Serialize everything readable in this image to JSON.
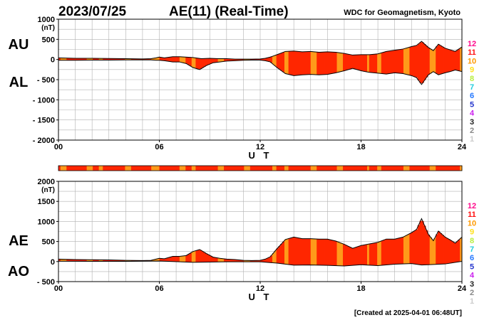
{
  "header": {
    "date": "2023/07/25",
    "title": "AE(11) (Real-Time)",
    "source": "WDC for Geomagnetism, Kyoto"
  },
  "footer": {
    "created": "[Created at 2025-04-01 06:48UT]"
  },
  "colors": {
    "fill_main": "#ff2600",
    "fill_alt": "#ff9a1a",
    "outline": "#000000",
    "grid": "#b0b0b0"
  },
  "legend": {
    "items": [
      {
        "label": "12",
        "color": "#ff0a8c"
      },
      {
        "label": "11",
        "color": "#ff1010"
      },
      {
        "label": "10",
        "color": "#ff9900"
      },
      {
        "label": "9",
        "color": "#ffe01a"
      },
      {
        "label": "8",
        "color": "#b8ee40"
      },
      {
        "label": "7",
        "color": "#22ccdd"
      },
      {
        "label": "6",
        "color": "#2277ff"
      },
      {
        "label": "5",
        "color": "#2233cc"
      },
      {
        "label": "4",
        "color": "#cc22ee"
      },
      {
        "label": "3",
        "color": "#222222"
      },
      {
        "label": "2",
        "color": "#888888"
      },
      {
        "label": "1",
        "color": "#cccccc"
      }
    ]
  },
  "chart_data": [
    {
      "type": "area",
      "panel": "AU/AL",
      "labels": [
        "AU",
        "AL"
      ],
      "ylabel": "(nT)",
      "xlabel": "U T",
      "xlim": [
        0,
        24
      ],
      "ylim": [
        -2000,
        1000
      ],
      "xticks": [
        "00",
        "06",
        "12",
        "18",
        "24"
      ],
      "yticks": [
        {
          "value": 1000,
          "label": "1000"
        },
        {
          "value": 500,
          "label": "500"
        },
        {
          "value": 0,
          "label": "0"
        },
        {
          "value": -500,
          "label": "- 500"
        },
        {
          "value": -1000,
          "label": "- 1000"
        },
        {
          "value": -1500,
          "label": "- 1500"
        },
        {
          "value": -2000,
          "label": "- 2000"
        }
      ],
      "grid": true,
      "series": [
        {
          "name": "AU",
          "x": [
            0,
            1,
            2,
            3,
            4,
            5,
            5.5,
            5.8,
            6,
            6.3,
            6.8,
            7.2,
            8,
            8.5,
            9,
            9.5,
            10,
            10.5,
            11,
            11.5,
            12,
            12.3,
            12.6,
            13,
            13.5,
            14,
            14.5,
            15,
            15.5,
            16,
            16.5,
            17,
            17.5,
            18,
            18.5,
            19,
            19.5,
            20,
            20.5,
            21,
            21.3,
            21.6,
            22,
            22.3,
            22.6,
            23,
            23.3,
            23.6,
            24
          ],
          "values": [
            40,
            30,
            30,
            25,
            20,
            15,
            20,
            40,
            60,
            40,
            70,
            70,
            50,
            20,
            30,
            20,
            20,
            10,
            10,
            10,
            15,
            30,
            60,
            120,
            200,
            210,
            190,
            200,
            180,
            190,
            180,
            150,
            110,
            120,
            120,
            140,
            200,
            230,
            260,
            320,
            350,
            450,
            300,
            220,
            380,
            280,
            240,
            200,
            310
          ]
        },
        {
          "name": "AL",
          "x": [
            0,
            1,
            2,
            3,
            4,
            5,
            5.5,
            5.8,
            6,
            6.3,
            6.8,
            7.2,
            7.6,
            8,
            8.4,
            8.8,
            9.2,
            9.6,
            10,
            10.5,
            11,
            11.5,
            12,
            12.3,
            12.6,
            13,
            13.5,
            14,
            14.5,
            15,
            15.5,
            16,
            16.5,
            17,
            17.5,
            18,
            18.5,
            19,
            19.5,
            20,
            20.5,
            21,
            21.3,
            21.6,
            22,
            22.3,
            22.6,
            23,
            23.3,
            23.6,
            24
          ],
          "values": [
            -20,
            -20,
            -15,
            -15,
            -10,
            -10,
            -10,
            -20,
            -20,
            -30,
            -60,
            -60,
            -100,
            -200,
            -250,
            -150,
            -80,
            -60,
            -40,
            -30,
            -20,
            -15,
            -15,
            -30,
            -60,
            -200,
            -350,
            -400,
            -380,
            -370,
            -380,
            -370,
            -330,
            -280,
            -220,
            -280,
            -320,
            -340,
            -360,
            -330,
            -350,
            -400,
            -450,
            -620,
            -380,
            -300,
            -380,
            -330,
            -300,
            -260,
            -300
          ]
        }
      ]
    },
    {
      "type": "area",
      "panel": "AE/AO",
      "labels": [
        "AE",
        "AO"
      ],
      "ylabel": "(nT)",
      "xlabel": "U T",
      "xlim": [
        0,
        24
      ],
      "ylim": [
        -500,
        2000
      ],
      "xticks": [
        "00",
        "06",
        "12",
        "18",
        "24"
      ],
      "yticks": [
        {
          "value": 2000,
          "label": "2000"
        },
        {
          "value": 1500,
          "label": "1500"
        },
        {
          "value": 1000,
          "label": "1000"
        },
        {
          "value": 500,
          "label": "500"
        },
        {
          "value": 0,
          "label": "0"
        },
        {
          "value": -500,
          "label": "- 500"
        }
      ],
      "grid": true,
      "series": [
        {
          "name": "AE",
          "x": [
            0,
            1,
            2,
            3,
            4,
            5,
            5.5,
            5.8,
            6,
            6.3,
            6.8,
            7.2,
            7.6,
            8,
            8.4,
            8.8,
            9.2,
            9.6,
            10,
            10.5,
            11,
            11.5,
            12,
            12.3,
            12.6,
            13,
            13.5,
            14,
            14.5,
            15,
            15.5,
            16,
            16.5,
            17,
            17.5,
            18,
            18.5,
            19,
            19.5,
            20,
            20.5,
            21,
            21.3,
            21.6,
            22,
            22.3,
            22.6,
            23,
            23.3,
            23.6,
            24
          ],
          "values": [
            60,
            50,
            45,
            40,
            30,
            25,
            30,
            60,
            80,
            70,
            130,
            130,
            150,
            250,
            300,
            200,
            110,
            80,
            60,
            50,
            30,
            25,
            30,
            60,
            120,
            320,
            550,
            610,
            570,
            570,
            560,
            560,
            510,
            430,
            330,
            400,
            440,
            480,
            560,
            560,
            610,
            720,
            800,
            1070,
            680,
            520,
            760,
            610,
            540,
            460,
            610
          ]
        },
        {
          "name": "AO",
          "x": [
            0,
            2,
            4,
            6,
            8,
            10,
            12,
            13,
            14,
            15,
            16,
            17,
            18,
            19,
            20,
            21,
            21.6,
            22,
            23,
            24
          ],
          "values": [
            10,
            5,
            5,
            15,
            -20,
            -5,
            -5,
            -40,
            -90,
            -85,
            -95,
            -110,
            -80,
            -100,
            -65,
            -50,
            -85,
            -80,
            -60,
            5
          ]
        }
      ]
    }
  ]
}
